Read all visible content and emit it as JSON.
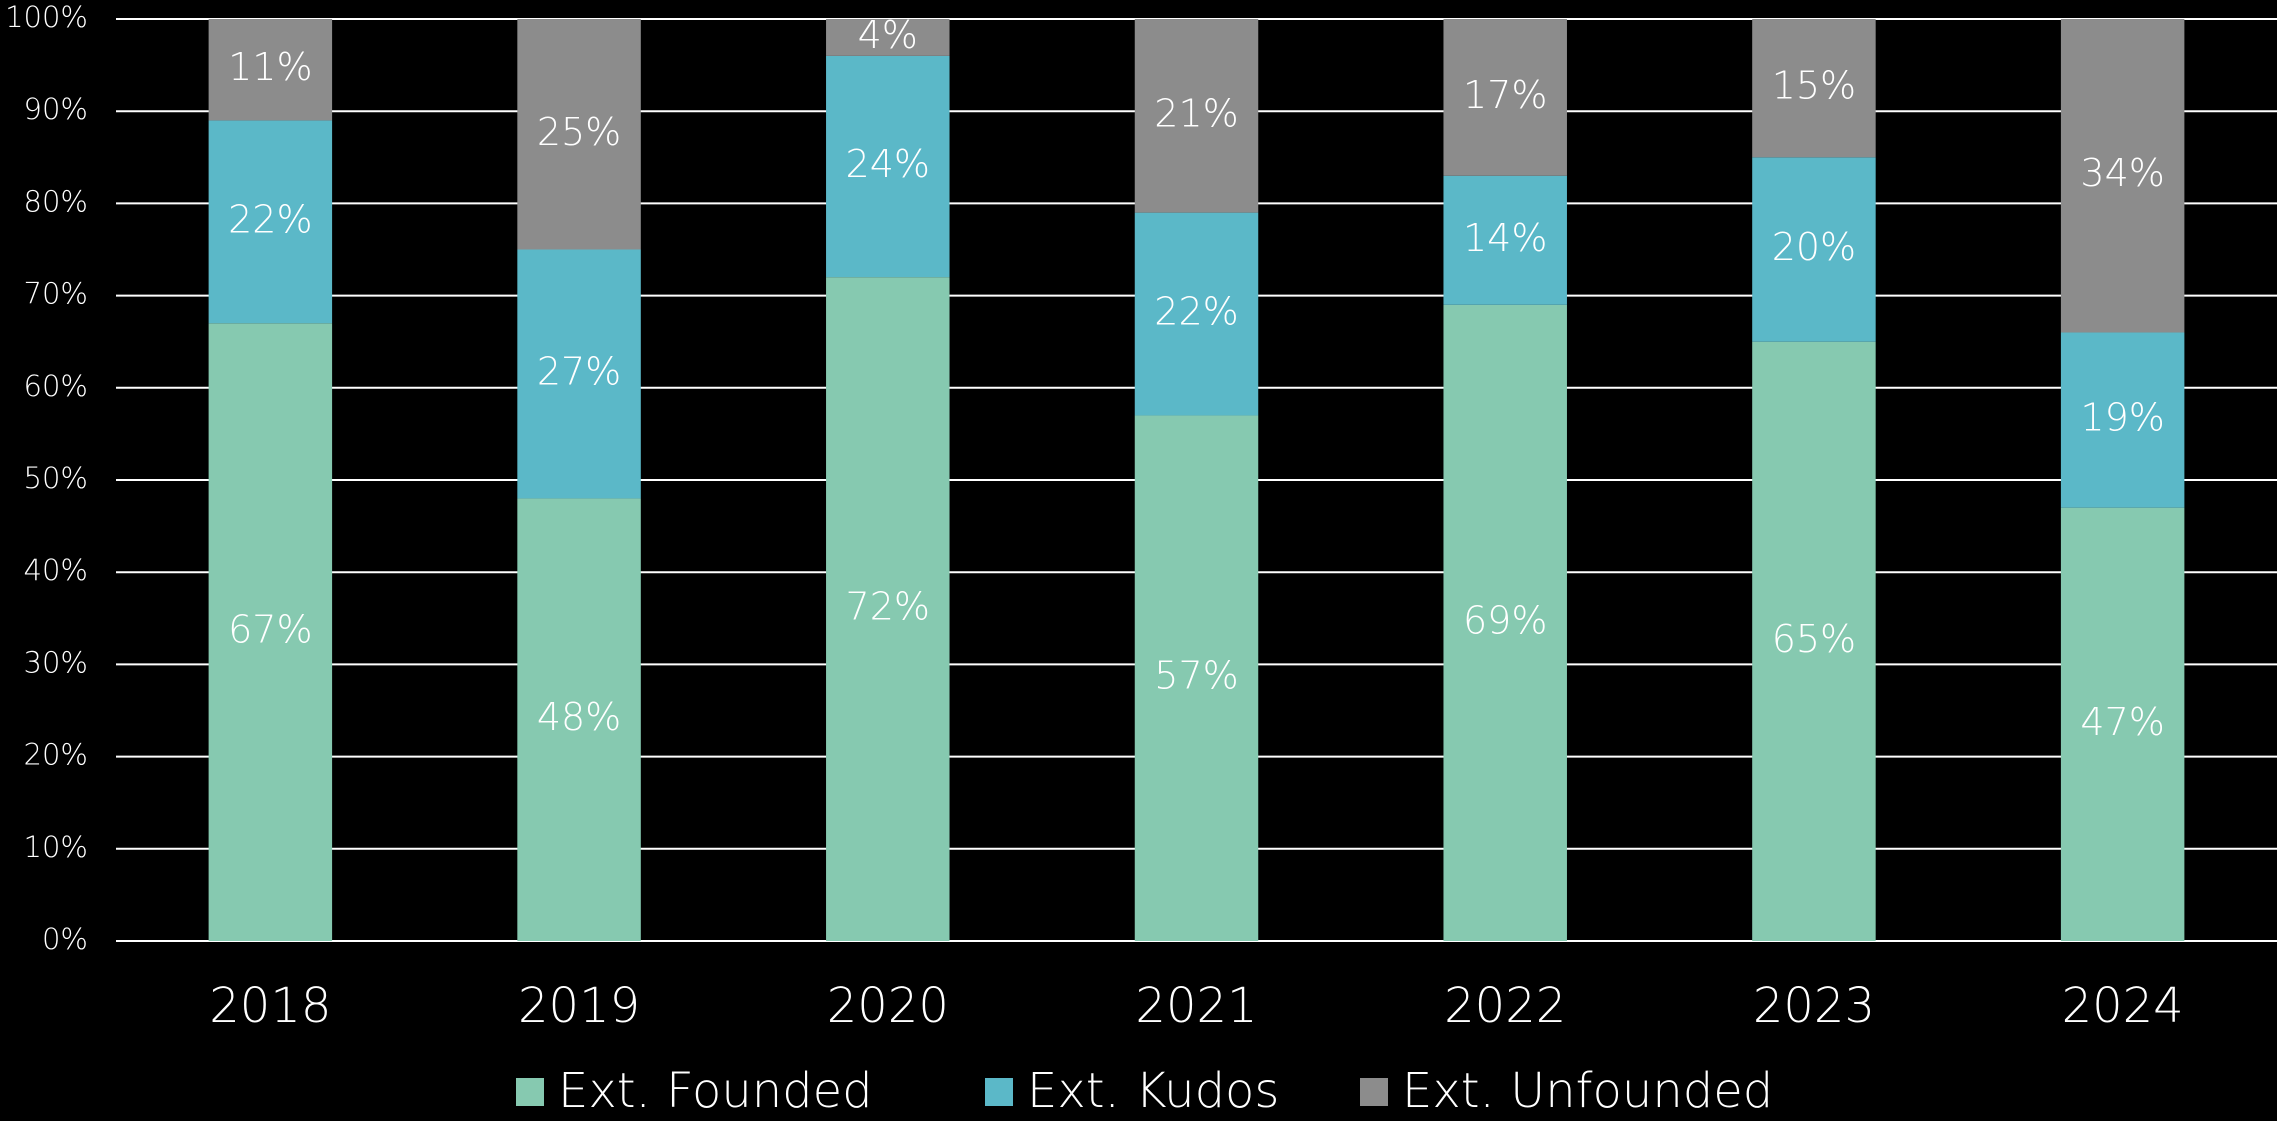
{
  "chart_data": {
    "type": "stacked_bar",
    "categories": [
      "2018",
      "2019",
      "2020",
      "2021",
      "2022",
      "2023",
      "2024"
    ],
    "series": [
      {
        "name": "Ext. Founded",
        "color": "#86c9b0",
        "values": [
          67,
          48,
          72,
          57,
          69,
          65,
          47
        ],
        "value_labels": [
          "67%",
          "48%",
          "72%",
          "57%",
          "69%",
          "65%",
          "47%"
        ]
      },
      {
        "name": "Ext. Kudos",
        "color": "#5bb8c8",
        "values": [
          22,
          27,
          24,
          22,
          14,
          20,
          19
        ],
        "value_labels": [
          "22%",
          "27%",
          "24%",
          "22%",
          "14%",
          "20%",
          "19%"
        ]
      },
      {
        "name": "Ext. Unfounded",
        "color": "#8c8c8c",
        "values": [
          11,
          25,
          4,
          21,
          17,
          15,
          34
        ],
        "value_labels": [
          "11%",
          "25%",
          "4%",
          "21%",
          "17%",
          "15%",
          "34%"
        ]
      }
    ],
    "ylim": [
      0,
      100
    ],
    "yticks": [
      {
        "value": 0,
        "label": "0%"
      },
      {
        "value": 10,
        "label": "10%"
      },
      {
        "value": 20,
        "label": "20%"
      },
      {
        "value": 30,
        "label": "30%"
      },
      {
        "value": 40,
        "label": "40%"
      },
      {
        "value": 50,
        "label": "50%"
      },
      {
        "value": 60,
        "label": "60%"
      },
      {
        "value": 70,
        "label": "70%"
      },
      {
        "value": 80,
        "label": "80%"
      },
      {
        "value": 90,
        "label": "90%"
      },
      {
        "value": 100,
        "label": "100%"
      }
    ],
    "grid": true,
    "legend": "bottom"
  }
}
